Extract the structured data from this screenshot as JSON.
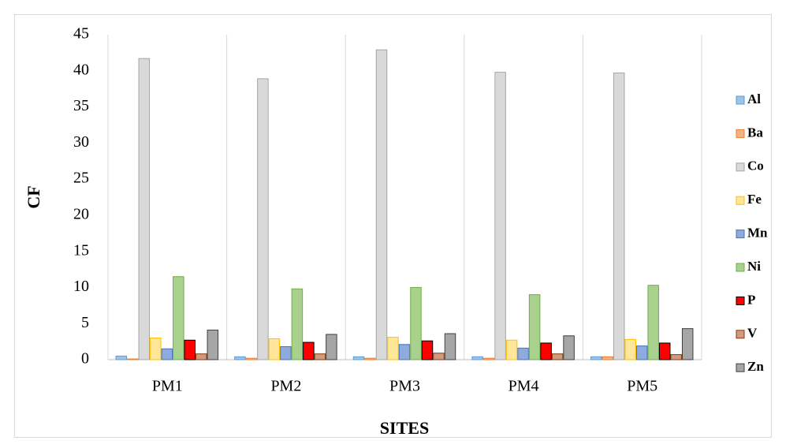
{
  "chart_data": {
    "type": "bar",
    "x_label": "SITES",
    "y_label": "CF",
    "categories": [
      "PM1",
      "PM2",
      "PM3",
      "PM4",
      "PM5"
    ],
    "series": [
      {
        "name": "Al",
        "color": "#9dc3e6",
        "edgecolor": "#5b9bd5",
        "values": [
          0.5,
          0.4,
          0.4,
          0.4,
          0.4
        ]
      },
      {
        "name": "Ba",
        "color": "#f4b183",
        "edgecolor": "#ed7d31",
        "values": [
          0.1,
          0.2,
          0.2,
          0.2,
          0.4
        ]
      },
      {
        "name": "Co",
        "color": "#d9d9d9",
        "edgecolor": "#a5a5a5",
        "values": [
          41.7,
          38.9,
          42.9,
          39.8,
          39.7
        ]
      },
      {
        "name": "Fe",
        "color": "#ffe699",
        "edgecolor": "#ffc000",
        "values": [
          3.0,
          2.9,
          3.1,
          2.7,
          2.8
        ]
      },
      {
        "name": "Mn",
        "color": "#8faadc",
        "edgecolor": "#4472c4",
        "values": [
          1.5,
          1.8,
          2.1,
          1.6,
          1.9
        ]
      },
      {
        "name": "Ni",
        "color": "#a9d18e",
        "edgecolor": "#70ad47",
        "values": [
          11.5,
          9.8,
          10.0,
          9.0,
          10.3
        ]
      },
      {
        "name": "P",
        "color": "#ff0000",
        "edgecolor": "#000000",
        "values": [
          2.7,
          2.4,
          2.6,
          2.3,
          2.3
        ]
      },
      {
        "name": "V",
        "color": "#d09a7e",
        "edgecolor": "#843c0c",
        "values": [
          0.8,
          0.8,
          0.9,
          0.8,
          0.7
        ]
      },
      {
        "name": "Zn",
        "color": "#a6a6a6",
        "edgecolor": "#404040",
        "values": [
          4.1,
          3.5,
          3.6,
          3.3,
          4.3
        ]
      }
    ],
    "ylim": [
      0,
      45
    ],
    "yticks": [
      0,
      5,
      10,
      15,
      20,
      25,
      30,
      35,
      40,
      45
    ],
    "grid": "x",
    "legend": "right"
  }
}
